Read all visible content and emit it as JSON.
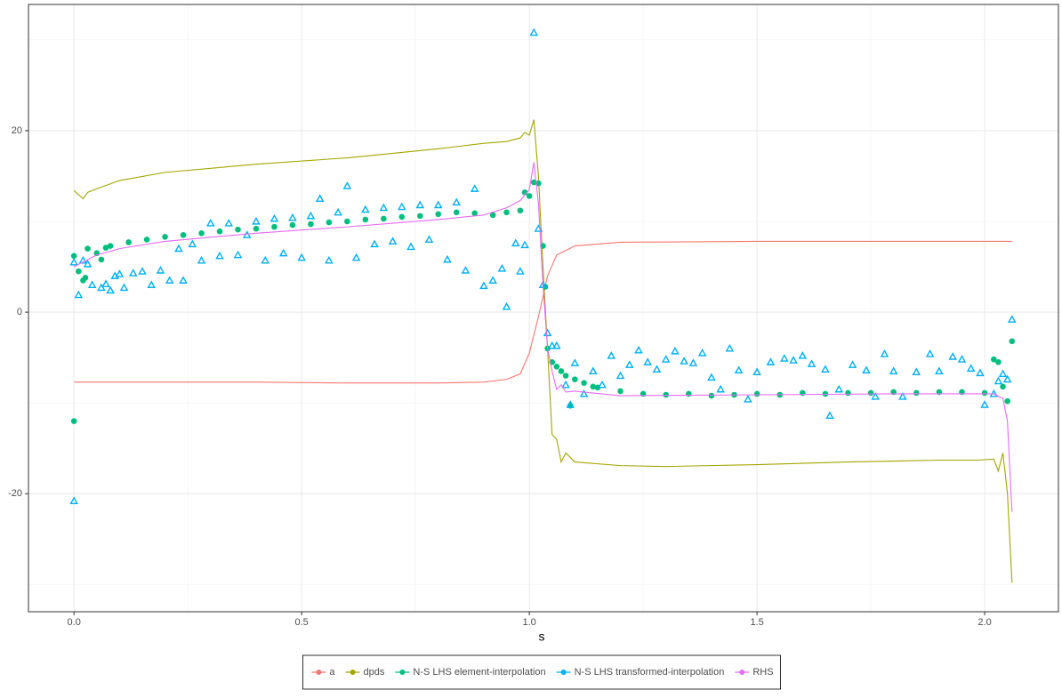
{
  "chart_data": {
    "type": "line_scatter",
    "x_label": "s",
    "xlim": [
      -0.1,
      2.162
    ],
    "ylim": [
      -33,
      33.9
    ],
    "xticks": [
      {
        "value": 0,
        "label": "0.0"
      },
      0.5,
      {
        "value": 1,
        "label": "1.0"
      },
      1.5,
      {
        "value": 2,
        "label": "2.0"
      }
    ],
    "xminorticks": [
      0.25,
      0.75,
      1.25,
      1.75
    ],
    "yticks": [
      -20,
      0,
      20
    ],
    "yminorticks": [
      -30,
      -10,
      10,
      30
    ],
    "grid": true,
    "legend": "bottom",
    "series": [
      {
        "name": "a",
        "color": "#F8766D",
        "marker": "line",
        "x": [
          0,
          0.2,
          0.4,
          0.6,
          0.8,
          0.9,
          0.95,
          0.98,
          1.0,
          1.02,
          1.04,
          1.06,
          1.1,
          1.2,
          1.5,
          1.8,
          2.06
        ],
        "values": [
          -7.7,
          -7.7,
          -7.7,
          -7.8,
          -7.8,
          -7.7,
          -7.4,
          -6.8,
          -4.5,
          -0.5,
          4.0,
          6.3,
          7.3,
          7.7,
          7.8,
          7.8,
          7.8
        ]
      },
      {
        "name": "dpds",
        "color": "#A3A500",
        "marker": "line",
        "x": [
          0,
          0.02,
          0.03,
          0.05,
          0.1,
          0.2,
          0.4,
          0.6,
          0.8,
          0.9,
          0.95,
          0.98,
          0.99,
          1.0,
          1.01,
          1.02,
          1.03,
          1.04,
          1.05,
          1.06,
          1.07,
          1.08,
          1.1,
          1.2,
          1.3,
          1.5,
          1.7,
          1.9,
          1.98,
          2.02,
          2.03,
          2.04,
          2.05,
          2.06
        ],
        "values": [
          13.4,
          12.5,
          13.2,
          13.6,
          14.5,
          15.4,
          16.3,
          17.0,
          18.0,
          18.6,
          18.8,
          19.2,
          19.8,
          19.5,
          21.2,
          15,
          5,
          -4,
          -13.5,
          -14,
          -16.5,
          -15.5,
          -16.5,
          -16.9,
          -17.0,
          -16.8,
          -16.5,
          -16.3,
          -16.3,
          -16.2,
          -17.5,
          -15.5,
          -20,
          -29.8
        ]
      },
      {
        "name": "N-S LHS element-interpolation",
        "color": "#00BF7D",
        "marker": "circle",
        "x": [
          0,
          0,
          0.01,
          0.02,
          0.025,
          0.03,
          0.05,
          0.06,
          0.07,
          0.08,
          0.12,
          0.16,
          0.2,
          0.24,
          0.28,
          0.32,
          0.36,
          0.4,
          0.44,
          0.48,
          0.52,
          0.56,
          0.6,
          0.64,
          0.68,
          0.72,
          0.76,
          0.8,
          0.84,
          0.88,
          0.92,
          0.95,
          0.98,
          0.99,
          1.0,
          1.01,
          1.02,
          1.03,
          1.035,
          1.04,
          1.05,
          1.06,
          1.07,
          1.08,
          1.09,
          1.1,
          1.12,
          1.14,
          1.15,
          1.2,
          1.25,
          1.3,
          1.35,
          1.4,
          1.45,
          1.5,
          1.55,
          1.6,
          1.65,
          1.7,
          1.75,
          1.8,
          1.85,
          1.9,
          1.95,
          2.0,
          2.02,
          2.03,
          2.04,
          2.05,
          2.06
        ],
        "values": [
          -12,
          6.2,
          4.5,
          3.5,
          3.8,
          7.0,
          6.5,
          5.8,
          7.1,
          7.3,
          7.7,
          8.0,
          8.3,
          8.5,
          8.7,
          8.9,
          9.1,
          9.2,
          9.4,
          9.6,
          9.7,
          9.9,
          10.0,
          10.2,
          10.3,
          10.5,
          10.6,
          10.8,
          11.0,
          10.9,
          10.7,
          11.0,
          11.2,
          13.2,
          12.8,
          14.3,
          14.2,
          7.3,
          2.8,
          -4,
          -5.5,
          -6,
          -6.5,
          -7,
          -10.3,
          -7.4,
          -7.8,
          -8.2,
          -8.3,
          -8.7,
          -9.0,
          -9.1,
          -9.0,
          -9.2,
          -9.1,
          -9.0,
          -9.1,
          -8.9,
          -9.0,
          -8.9,
          -8.9,
          -8.8,
          -8.9,
          -8.8,
          -8.8,
          -8.9,
          -5.2,
          -5.5,
          -8.2,
          -9.8,
          -3.2
        ]
      },
      {
        "name": "N-S LHS transformed-interpolation",
        "color": "#00B0F6",
        "marker": "triangle",
        "x": [
          0,
          0,
          0.01,
          0.02,
          0.03,
          0.04,
          0.06,
          0.07,
          0.08,
          0.09,
          0.1,
          0.11,
          0.13,
          0.15,
          0.17,
          0.19,
          0.21,
          0.23,
          0.24,
          0.26,
          0.28,
          0.3,
          0.32,
          0.34,
          0.36,
          0.38,
          0.4,
          0.42,
          0.44,
          0.46,
          0.48,
          0.5,
          0.52,
          0.54,
          0.56,
          0.58,
          0.6,
          0.62,
          0.64,
          0.66,
          0.68,
          0.7,
          0.72,
          0.74,
          0.76,
          0.78,
          0.8,
          0.82,
          0.84,
          0.86,
          0.88,
          0.9,
          0.92,
          0.94,
          0.95,
          0.97,
          0.98,
          0.99,
          1.01,
          1.02,
          1.03,
          1.04,
          1.05,
          1.06,
          1.08,
          1.09,
          1.1,
          1.12,
          1.14,
          1.16,
          1.18,
          1.2,
          1.22,
          1.24,
          1.26,
          1.28,
          1.3,
          1.32,
          1.34,
          1.36,
          1.38,
          1.4,
          1.42,
          1.44,
          1.46,
          1.48,
          1.5,
          1.53,
          1.56,
          1.58,
          1.6,
          1.62,
          1.65,
          1.66,
          1.68,
          1.71,
          1.74,
          1.76,
          1.78,
          1.8,
          1.82,
          1.85,
          1.88,
          1.9,
          1.93,
          1.95,
          1.97,
          1.99,
          2.0,
          2.02,
          2.03,
          2.04,
          2.05,
          2.06
        ],
        "values": [
          -20.8,
          5.5,
          1.9,
          5.7,
          5.3,
          3.0,
          2.7,
          3.1,
          2.4,
          4.0,
          4.2,
          2.7,
          4.3,
          4.5,
          3.0,
          4.6,
          3.5,
          7.0,
          3.5,
          7.5,
          5.7,
          9.8,
          6.2,
          9.8,
          6.3,
          8.5,
          10.0,
          5.7,
          10.3,
          6.5,
          10.4,
          6.0,
          10.6,
          12.5,
          5.7,
          11.0,
          13.9,
          6.0,
          11.3,
          7.5,
          11.5,
          7.8,
          11.6,
          7.2,
          11.8,
          8.0,
          11.8,
          5.8,
          12.1,
          4.6,
          13.6,
          2.9,
          3.5,
          4.8,
          0.6,
          7.6,
          4.5,
          7.4,
          30.8,
          9.2,
          3.0,
          -2.3,
          -3.7,
          -3.7,
          -8.0,
          -10.2,
          -5.6,
          -9.0,
          -6.5,
          -8.0,
          -4.8,
          -7.0,
          -5.8,
          -4.2,
          -5.5,
          -6.3,
          -5.2,
          -4.3,
          -5.4,
          -5.6,
          -4.5,
          -7.2,
          -8.5,
          -4.0,
          -6.4,
          -9.6,
          -6.6,
          -5.5,
          -5.1,
          -5.3,
          -4.8,
          -5.7,
          -6.3,
          -11.4,
          -8.5,
          -5.8,
          -6.4,
          -9.3,
          -4.6,
          -6.5,
          -9.3,
          -6.6,
          -4.6,
          -6.5,
          -4.9,
          -5.2,
          -6.2,
          -6.7,
          -10.2,
          -9.0,
          -7.6,
          -6.8,
          -7.4,
          -0.8
        ]
      },
      {
        "name": "RHS",
        "color": "#E76BF3",
        "marker": "line",
        "x": [
          0,
          0.05,
          0.1,
          0.2,
          0.4,
          0.6,
          0.8,
          0.9,
          0.95,
          0.98,
          1.0,
          1.01,
          1.02,
          1.03,
          1.04,
          1.05,
          1.06,
          1.07,
          1.08,
          1.1,
          1.2,
          1.5,
          1.8,
          2.02,
          2.04,
          2.05,
          2.06
        ],
        "values": [
          5.0,
          6.3,
          7.0,
          7.8,
          8.7,
          9.4,
          10.2,
          10.7,
          11.5,
          12.3,
          13.5,
          16.5,
          12,
          3,
          -4,
          -6.5,
          -8.5,
          -8.0,
          -8.8,
          -8.7,
          -9.2,
          -9.1,
          -9.0,
          -9.0,
          -9.5,
          -12,
          -22
        ]
      }
    ]
  }
}
